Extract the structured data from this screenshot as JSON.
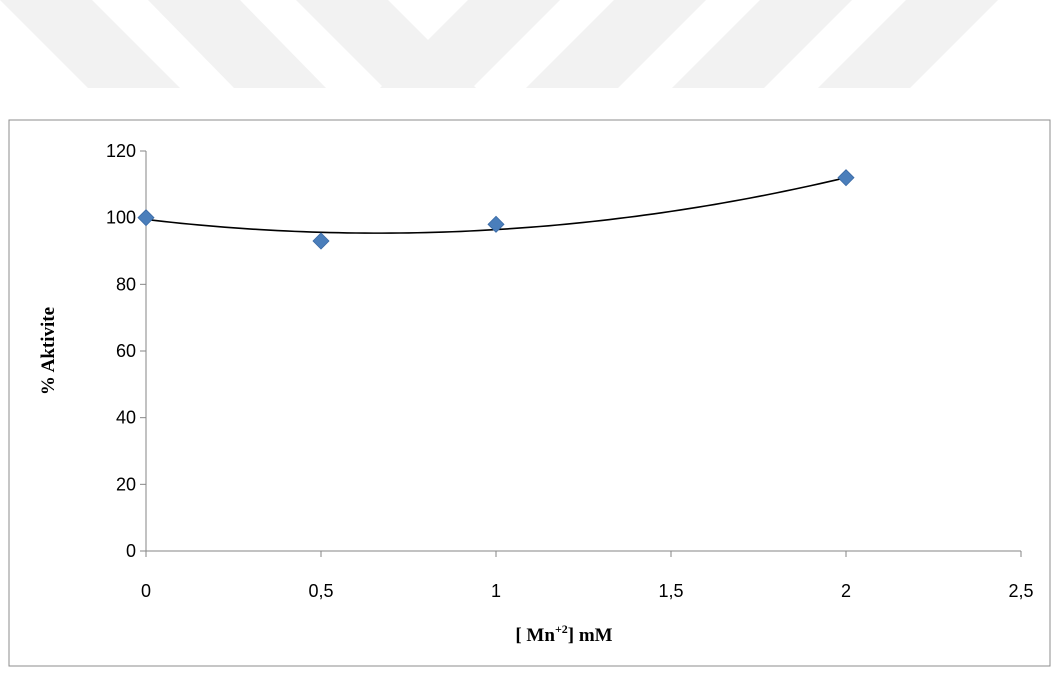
{
  "chart_data": {
    "type": "scatter",
    "xlabel": {
      "prefix": "[ Mn",
      "superscript": "+2",
      "suffix": "] mM"
    },
    "ylabel": "% Aktivite",
    "xlim": [
      0,
      2.5
    ],
    "ylim": [
      0,
      120
    ],
    "x_ticks": [
      {
        "value": 0,
        "label": "0"
      },
      {
        "value": 0.5,
        "label": "0,5"
      },
      {
        "value": 1,
        "label": "1"
      },
      {
        "value": 1.5,
        "label": "1,5"
      },
      {
        "value": 2,
        "label": "2"
      },
      {
        "value": 2.5,
        "label": "2,5"
      }
    ],
    "y_ticks": [
      {
        "value": 0,
        "label": "0"
      },
      {
        "value": 20,
        "label": "20"
      },
      {
        "value": 40,
        "label": "40"
      },
      {
        "value": 60,
        "label": "60"
      },
      {
        "value": 80,
        "label": "80"
      },
      {
        "value": 100,
        "label": "100"
      },
      {
        "value": 120,
        "label": "120"
      }
    ],
    "series": [
      {
        "marker": "diamond",
        "color": "#4a7ebb",
        "x": [
          0,
          0.5,
          1,
          2
        ],
        "y": [
          100,
          93,
          98,
          112
        ]
      }
    ],
    "trendline": {
      "type": "polynomial",
      "order": 2,
      "color": "#000000",
      "x_range": [
        0,
        2
      ],
      "points": [
        [
          0,
          99.5
        ],
        [
          0.5,
          95.5
        ],
        [
          1,
          96.5
        ],
        [
          2,
          112
        ]
      ]
    },
    "grid": false,
    "legend": "none"
  },
  "watermark_color": "#f2f2f2"
}
